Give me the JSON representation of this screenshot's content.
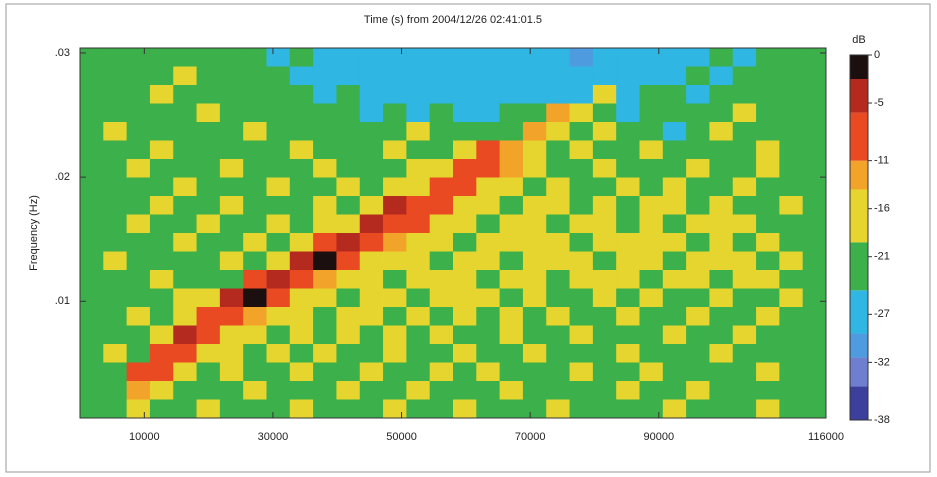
{
  "chart_data": {
    "type": "heatmap",
    "title": "Time (s) from 2004/12/26 02:41:01.5",
    "y_label": "Frequency (Hz)",
    "xlim": [
      0,
      116000
    ],
    "xticks": [
      10000,
      30000,
      50000,
      70000,
      90000,
      116000
    ],
    "ylim": [
      0.0006,
      0.0304
    ],
    "yticks": [
      {
        "value": 0.01,
        "label": ".01"
      },
      {
        "value": 0.02,
        "label": ".02"
      },
      {
        "value": 0.03,
        "label": ".03"
      }
    ],
    "colorbar": {
      "label": "dB",
      "clim": [
        -38,
        0
      ],
      "ticks": [
        0,
        -5,
        -11,
        -16,
        -21,
        -27,
        -32,
        -38
      ],
      "levels": [
        -38,
        -34.5,
        -31.5,
        -29,
        -24.5,
        -19.5,
        -14,
        -11,
        -6,
        -2.5,
        0
      ],
      "colors": [
        "#3c3f9c",
        "#6f7fd0",
        "#4f9be0",
        "#2fb6e3",
        "#3cb04a",
        "#e6d52e",
        "#f2a32a",
        "#ea4a22",
        "#b52a1e",
        "#1b0f0f"
      ]
    },
    "values": [
      [
        -22,
        -21,
        -22,
        -22,
        -21,
        -22,
        -23,
        -21,
        -26,
        -22,
        -26,
        -26,
        -27,
        -26,
        -26,
        -26,
        -26,
        -26,
        -26,
        -26,
        -27,
        -30,
        -26,
        -26,
        -26,
        -26,
        -26,
        -22,
        -26,
        -22,
        -21,
        -22
      ],
      [
        -22,
        -22,
        -21,
        -22,
        -17,
        -22,
        -21,
        -22,
        -22,
        -26,
        -26,
        -26,
        -26,
        -27,
        -26,
        -26,
        -26,
        -26,
        -26,
        -26,
        -26,
        -26,
        -26,
        -26,
        -26,
        -26,
        -22,
        -26,
        -22,
        -22,
        -21,
        -22
      ],
      [
        -21,
        -22,
        -22,
        -17,
        -22,
        -22,
        -22,
        -23,
        -22,
        -22,
        -26,
        -22,
        -26,
        -26,
        -26,
        -26,
        -26,
        -26,
        -27,
        -26,
        -26,
        -26,
        -16,
        -26,
        -22,
        -22,
        -26,
        -22,
        -22,
        -22,
        -22,
        -21
      ],
      [
        -22,
        -21,
        -22,
        -22,
        -22,
        -17,
        -22,
        -22,
        -21,
        -22,
        -22,
        -22,
        -26,
        -22,
        -26,
        -22,
        -26,
        -26,
        -22,
        -22,
        -14,
        -15,
        -22,
        -26,
        -22,
        -22,
        -22,
        -22,
        -17,
        -22,
        -22,
        -22
      ],
      [
        -22,
        -17,
        -22,
        -21,
        -22,
        -22,
        -22,
        -17,
        -22,
        -22,
        -21,
        -22,
        -22,
        -22,
        -17,
        -22,
        -22,
        -22,
        -22,
        -13,
        -16,
        -22,
        -17,
        -22,
        -22,
        -26,
        -22,
        -17,
        -22,
        -22,
        -22,
        -21
      ],
      [
        -21,
        -22,
        -22,
        -17,
        -22,
        -21,
        -22,
        -22,
        -22,
        -17,
        -22,
        -22,
        -22,
        -17,
        -22,
        -22,
        -17,
        -9,
        -12,
        -15,
        -22,
        -17,
        -22,
        -22,
        -17,
        -22,
        -22,
        -22,
        -22,
        -17,
        -22,
        -22
      ],
      [
        -22,
        -22,
        -17,
        -22,
        -22,
        -22,
        -17,
        -22,
        -22,
        -22,
        -17,
        -22,
        -22,
        -22,
        -17,
        -17,
        -8,
        -11,
        -14,
        -17,
        -22,
        -22,
        -17,
        -22,
        -22,
        -22,
        -17,
        -22,
        -22,
        -17,
        -22,
        -22
      ],
      [
        -22,
        -21,
        -22,
        -22,
        -17,
        -22,
        -22,
        -22,
        -17,
        -22,
        -22,
        -17,
        -22,
        -17,
        -15,
        -8,
        -10,
        -17,
        -17,
        -22,
        -17,
        -22,
        -22,
        -17,
        -22,
        -17,
        -22,
        -22,
        -17,
        -22,
        -22,
        -21
      ],
      [
        -22,
        -22,
        -22,
        -17,
        -22,
        -22,
        -17,
        -22,
        -22,
        -22,
        -17,
        -22,
        -16,
        -6,
        -7,
        -9,
        -17,
        -17,
        -22,
        -17,
        -17,
        -22,
        -17,
        -22,
        -17,
        -17,
        -22,
        -17,
        -22,
        -22,
        -17,
        -22
      ],
      [
        -21,
        -22,
        -17,
        -22,
        -22,
        -17,
        -22,
        -22,
        -17,
        -22,
        -17,
        -15,
        -6,
        -8,
        -10,
        -16,
        -17,
        -22,
        -17,
        -17,
        -22,
        -17,
        -17,
        -22,
        -17,
        -22,
        -17,
        -17,
        -17,
        -22,
        -22,
        -22
      ],
      [
        -22,
        -22,
        -22,
        -22,
        -17,
        -22,
        -22,
        -17,
        -22,
        -17,
        -7,
        -6,
        -9,
        -13,
        -17,
        -17,
        -22,
        -17,
        -17,
        -17,
        -17,
        -22,
        -17,
        -17,
        -17,
        -17,
        -22,
        -17,
        -22,
        -17,
        -22,
        -22
      ],
      [
        -22,
        -17,
        -22,
        -22,
        -22,
        -22,
        -17,
        -22,
        -15,
        -5,
        -2,
        -9,
        -16,
        -17,
        -17,
        -22,
        -17,
        -17,
        -22,
        -17,
        -17,
        -17,
        -22,
        -17,
        -17,
        -22,
        -17,
        -17,
        -17,
        -22,
        -17,
        -22
      ],
      [
        -22,
        -22,
        -22,
        -17,
        -22,
        -22,
        -22,
        -8,
        -5,
        -9,
        -12,
        -17,
        -17,
        -22,
        -17,
        -17,
        -17,
        -22,
        -17,
        -17,
        -22,
        -17,
        -17,
        -17,
        -22,
        -17,
        -17,
        -22,
        -17,
        -17,
        -22,
        -22
      ],
      [
        -21,
        -22,
        -22,
        -22,
        -17,
        -15,
        -6,
        -2,
        -9,
        -17,
        -17,
        -22,
        -17,
        -17,
        -22,
        -17,
        -17,
        -17,
        -22,
        -17,
        -22,
        -22,
        -17,
        -22,
        -17,
        -22,
        -22,
        -17,
        -22,
        -22,
        -17,
        -22
      ],
      [
        -22,
        -22,
        -17,
        -22,
        -16,
        -7,
        -9,
        -12,
        -17,
        -17,
        -22,
        -17,
        -17,
        -22,
        -17,
        -22,
        -17,
        -22,
        -17,
        -22,
        -17,
        -22,
        -22,
        -17,
        -22,
        -22,
        -17,
        -22,
        -22,
        -17,
        -22,
        -22
      ],
      [
        -22,
        -22,
        -22,
        -15,
        -3,
        -9,
        -17,
        -17,
        -22,
        -17,
        -22,
        -17,
        -22,
        -17,
        -22,
        -17,
        -22,
        -22,
        -17,
        -22,
        -22,
        -17,
        -22,
        -22,
        -22,
        -17,
        -22,
        -22,
        -17,
        -22,
        -22,
        -21
      ],
      [
        -22,
        -17,
        -22,
        -8,
        -8,
        -17,
        -17,
        -22,
        -17,
        -22,
        -17,
        -22,
        -22,
        -17,
        -22,
        -22,
        -17,
        -22,
        -22,
        -17,
        -22,
        -22,
        -22,
        -17,
        -22,
        -22,
        -22,
        -17,
        -22,
        -22,
        -22,
        -22
      ],
      [
        -22,
        -22,
        -10,
        -10,
        -17,
        -22,
        -17,
        -22,
        -22,
        -17,
        -22,
        -22,
        -17,
        -22,
        -22,
        -17,
        -22,
        -17,
        -22,
        -22,
        -22,
        -17,
        -22,
        -22,
        -17,
        -22,
        -22,
        -22,
        -22,
        -17,
        -22,
        -22
      ],
      [
        -22,
        -21,
        -12,
        -17,
        -22,
        -22,
        -22,
        -17,
        -22,
        -22,
        -22,
        -17,
        -22,
        -22,
        -17,
        -22,
        -22,
        -22,
        -17,
        -22,
        -22,
        -22,
        -22,
        -17,
        -22,
        -22,
        -17,
        -22,
        -22,
        -22,
        -22,
        -21
      ],
      [
        -22,
        -22,
        -15,
        -22,
        -22,
        -17,
        -22,
        -22,
        -22,
        -17,
        -22,
        -22,
        -22,
        -17,
        -22,
        -22,
        -17,
        -22,
        -22,
        -22,
        -17,
        -22,
        -22,
        -22,
        -22,
        -17,
        -22,
        -22,
        -22,
        -17,
        -22,
        -22
      ]
    ]
  }
}
